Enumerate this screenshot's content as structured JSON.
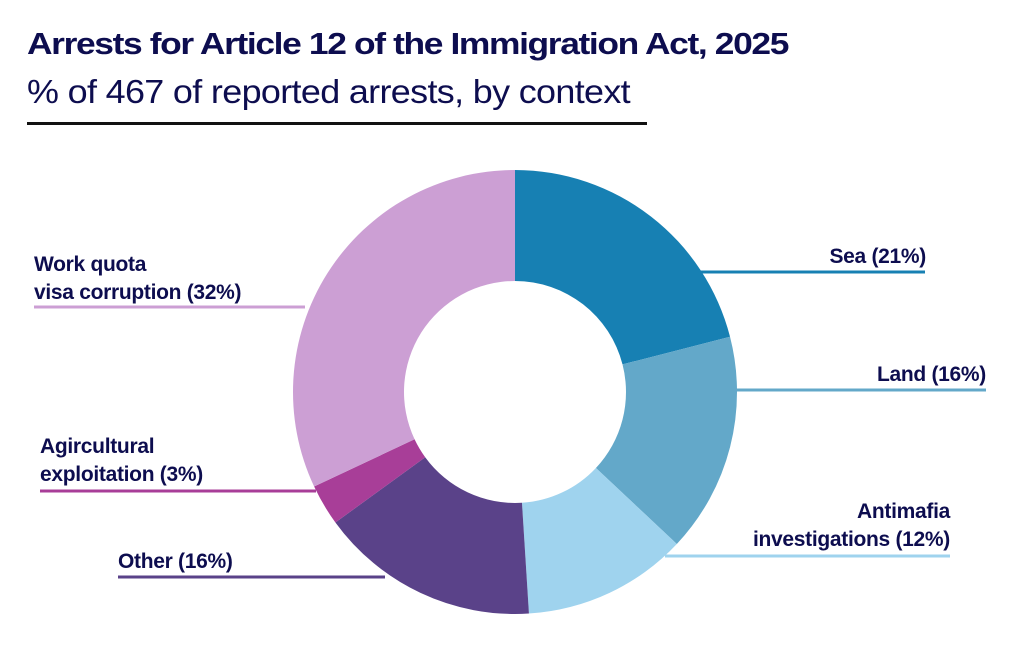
{
  "header": {
    "title": "Arrests for Article 12 of the Immigration Act, 2025",
    "subtitle": "% of 467 of reported arrests, by context"
  },
  "chart_data": {
    "type": "pie",
    "variant": "donut",
    "title": "Arrests for Article 12 of the Immigration Act, 2025",
    "subtitle": "% of 467 of reported arrests, by context",
    "total": 467,
    "unit": "%",
    "start": "top",
    "direction": "clockwise",
    "slices": [
      {
        "name": "Sea",
        "value": 21,
        "label_lines": [
          "Sea (21%)"
        ],
        "color": "#1780b3",
        "side": "right"
      },
      {
        "name": "Land",
        "value": 16,
        "label_lines": [
          "Land (16%)"
        ],
        "color": "#63a8c9",
        "side": "right"
      },
      {
        "name": "Antimafia investigations",
        "value": 12,
        "label_lines": [
          "Antimafia",
          "investigations (12%)"
        ],
        "color": "#9fd3ee",
        "side": "right"
      },
      {
        "name": "Other",
        "value": 16,
        "label_lines": [
          "Other (16%)"
        ],
        "color": "#5a4289",
        "side": "left"
      },
      {
        "name": "Agircultural exploitation",
        "value": 3,
        "label_lines": [
          "Agircultural",
          "exploitation (3%)"
        ],
        "color": "#a83e98",
        "side": "left"
      },
      {
        "name": "Work quota visa corruption",
        "value": 32,
        "label_lines": [
          "Work quota",
          "visa corruption (32%)"
        ],
        "color": "#cc9fd4",
        "side": "left"
      }
    ]
  }
}
